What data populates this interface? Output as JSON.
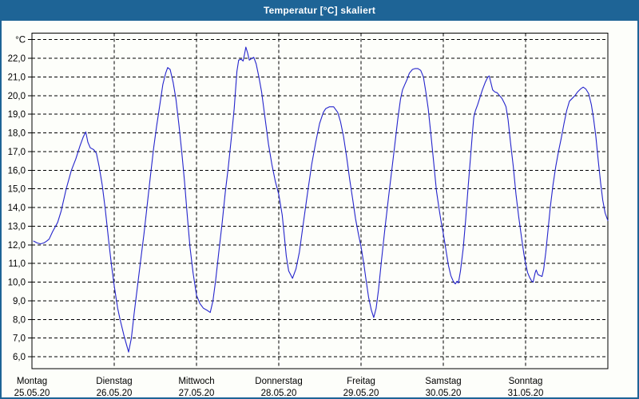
{
  "window": {
    "title": "Temperatur [°C] skaliert",
    "titlebar_color": "#1e6496",
    "border_color": "#1e6496",
    "background_color": "#fdfefa"
  },
  "chart_data": {
    "type": "line",
    "title": "Temperatur [°C] skaliert",
    "unit_label": "°C",
    "line_color": "#2424cc",
    "grid_color": "#000000",
    "grid_style": "dashed",
    "legend_position": "none",
    "y_axis": {
      "min": 6.0,
      "max": 23.0,
      "step": 1.0,
      "axis_min_visible": 5.4,
      "axis_max_visible": 23.3,
      "tick_labels": [
        {
          "v": 22,
          "label": "22,0"
        },
        {
          "v": 21,
          "label": "21,0"
        },
        {
          "v": 20,
          "label": "20,0"
        },
        {
          "v": 19,
          "label": "19,0"
        },
        {
          "v": 18,
          "label": "18,0"
        },
        {
          "v": 17,
          "label": "17,0"
        },
        {
          "v": 16,
          "label": "16,0"
        },
        {
          "v": 15,
          "label": "15,0"
        },
        {
          "v": 14,
          "label": "14,0"
        },
        {
          "v": 13,
          "label": "13,0"
        },
        {
          "v": 12,
          "label": "12,0"
        },
        {
          "v": 11,
          "label": "11,0"
        },
        {
          "v": 10,
          "label": "10,0"
        },
        {
          "v": 9,
          "label": "9,0"
        },
        {
          "v": 8,
          "label": "8,0"
        },
        {
          "v": 7,
          "label": "7,0"
        },
        {
          "v": 6,
          "label": "6,0"
        }
      ],
      "unit_tick_value": 23
    },
    "x_axis": {
      "range_hours": [
        0,
        168
      ],
      "day_span_hours": 24,
      "days": [
        {
          "name": "Montag",
          "date": "25.05.20"
        },
        {
          "name": "Dienstag",
          "date": "26.05.20"
        },
        {
          "name": "Mittwoch",
          "date": "27.05.20"
        },
        {
          "name": "Donnerstag",
          "date": "28.05.20"
        },
        {
          "name": "Freitag",
          "date": "29.05.20"
        },
        {
          "name": "Samstag",
          "date": "30.05.20"
        },
        {
          "name": "Sonntag",
          "date": "31.05.20"
        }
      ]
    },
    "series": [
      {
        "name": "Temperatur",
        "points": [
          [
            0.5,
            12.2
          ],
          [
            1.5,
            12.1
          ],
          [
            2.5,
            12.05
          ],
          [
            3.5,
            12.1
          ],
          [
            4.3,
            12.2
          ],
          [
            5,
            12.3
          ],
          [
            6,
            12.7
          ],
          [
            7.5,
            13.2
          ],
          [
            8.5,
            13.8
          ],
          [
            10,
            15.0
          ],
          [
            11.5,
            16.0
          ],
          [
            12.8,
            16.6
          ],
          [
            14,
            17.3
          ],
          [
            15,
            17.8
          ],
          [
            15.7,
            18.05
          ],
          [
            16.3,
            17.5
          ],
          [
            17,
            17.2
          ],
          [
            18,
            17.1
          ],
          [
            18.8,
            16.9
          ],
          [
            19.6,
            16.2
          ],
          [
            20.5,
            15.2
          ],
          [
            21.4,
            13.9
          ],
          [
            22.4,
            12.2
          ],
          [
            23.2,
            10.9
          ],
          [
            24,
            9.8
          ],
          [
            25,
            8.6
          ],
          [
            25.7,
            8.0
          ],
          [
            26.9,
            7.1
          ],
          [
            28.2,
            6.25
          ],
          [
            29,
            7.0
          ],
          [
            29.8,
            8.3
          ],
          [
            30.8,
            9.8
          ],
          [
            31.8,
            11.3
          ],
          [
            32.7,
            12.6
          ],
          [
            33.6,
            14.1
          ],
          [
            34.5,
            15.6
          ],
          [
            35.5,
            17.2
          ],
          [
            36.4,
            18.4
          ],
          [
            37.3,
            19.5
          ],
          [
            38.2,
            20.6
          ],
          [
            39,
            21.2
          ],
          [
            39.6,
            21.5
          ],
          [
            40.3,
            21.4
          ],
          [
            41.2,
            20.7
          ],
          [
            42,
            19.8
          ],
          [
            42.9,
            18.4
          ],
          [
            43.7,
            17.0
          ],
          [
            44.5,
            15.4
          ],
          [
            45.3,
            13.6
          ],
          [
            46.1,
            11.9
          ],
          [
            47,
            10.5
          ],
          [
            48,
            9.3
          ],
          [
            49,
            8.85
          ],
          [
            50,
            8.6
          ],
          [
            51,
            8.5
          ],
          [
            52,
            8.37
          ],
          [
            52.8,
            9.0
          ],
          [
            53.6,
            10.1
          ],
          [
            54.5,
            11.6
          ],
          [
            55.5,
            13.2
          ],
          [
            56.4,
            14.8
          ],
          [
            57.3,
            16.2
          ],
          [
            58.2,
            17.8
          ],
          [
            59,
            19.3
          ],
          [
            59.8,
            21.3
          ],
          [
            60.3,
            21.9
          ],
          [
            61,
            21.95
          ],
          [
            61.6,
            21.85
          ],
          [
            62.1,
            22.3
          ],
          [
            62.4,
            22.6
          ],
          [
            62.9,
            22.3
          ],
          [
            63.4,
            21.9
          ],
          [
            64.2,
            22.0
          ],
          [
            64.7,
            22.05
          ],
          [
            65.4,
            21.7
          ],
          [
            66.2,
            21.0
          ],
          [
            67,
            20.2
          ],
          [
            68,
            18.8
          ],
          [
            69,
            17.4
          ],
          [
            70,
            16.3
          ],
          [
            71,
            15.4
          ],
          [
            72,
            14.7
          ],
          [
            73,
            13.6
          ],
          [
            73.6,
            12.5
          ],
          [
            74.2,
            11.4
          ],
          [
            74.9,
            10.6
          ],
          [
            76,
            10.2
          ],
          [
            77,
            10.7
          ],
          [
            78,
            11.6
          ],
          [
            79.2,
            13.2
          ],
          [
            80.4,
            14.8
          ],
          [
            81.6,
            16.3
          ],
          [
            82.8,
            17.5
          ],
          [
            83.9,
            18.5
          ],
          [
            85,
            19.1
          ],
          [
            85.7,
            19.3
          ],
          [
            86.8,
            19.4
          ],
          [
            88,
            19.4
          ],
          [
            89.2,
            19.1
          ],
          [
            90,
            18.6
          ],
          [
            90.9,
            17.8
          ],
          [
            91.8,
            16.7
          ],
          [
            92.7,
            15.5
          ],
          [
            93.6,
            14.4
          ],
          [
            94.4,
            13.4
          ],
          [
            95.2,
            12.6
          ],
          [
            96,
            11.9
          ],
          [
            96.8,
            11.0
          ],
          [
            97.4,
            10.2
          ],
          [
            98.2,
            9.2
          ],
          [
            99,
            8.5
          ],
          [
            99.7,
            8.1
          ],
          [
            100.4,
            8.6
          ],
          [
            101.1,
            9.6
          ],
          [
            102,
            11.2
          ],
          [
            103,
            12.9
          ],
          [
            104,
            14.5
          ],
          [
            104.9,
            15.9
          ],
          [
            105.8,
            17.3
          ],
          [
            106.7,
            18.7
          ],
          [
            107.5,
            19.8
          ],
          [
            108.1,
            20.3
          ],
          [
            108.8,
            20.6
          ],
          [
            109.4,
            20.85
          ],
          [
            110.1,
            21.2
          ],
          [
            111,
            21.4
          ],
          [
            111.8,
            21.45
          ],
          [
            112.6,
            21.45
          ],
          [
            113.4,
            21.35
          ],
          [
            114.2,
            21.0
          ],
          [
            114.9,
            20.2
          ],
          [
            115.6,
            19.3
          ],
          [
            116.4,
            17.9
          ],
          [
            117.2,
            16.4
          ],
          [
            118,
            14.9
          ],
          [
            118.8,
            13.9
          ],
          [
            119.4,
            13.2
          ],
          [
            120,
            12.6
          ],
          [
            120.8,
            11.7
          ],
          [
            121.5,
            10.9
          ],
          [
            122.2,
            10.35
          ],
          [
            123,
            10.0
          ],
          [
            123.5,
            9.9
          ],
          [
            124,
            10.05
          ],
          [
            124.4,
            9.95
          ],
          [
            125,
            10.6
          ],
          [
            125.8,
            11.8
          ],
          [
            126.5,
            13.3
          ],
          [
            127.2,
            15.0
          ],
          [
            127.9,
            16.6
          ],
          [
            128.5,
            18.0
          ],
          [
            128.9,
            18.85
          ],
          [
            129.4,
            19.2
          ],
          [
            130,
            19.5
          ],
          [
            130.7,
            19.9
          ],
          [
            131.4,
            20.3
          ],
          [
            132.2,
            20.7
          ],
          [
            133,
            21.0
          ],
          [
            133.4,
            21.05
          ],
          [
            134,
            20.6
          ],
          [
            134.4,
            20.3
          ],
          [
            135,
            20.2
          ],
          [
            135.7,
            20.15
          ],
          [
            136.4,
            20.0
          ],
          [
            137.1,
            19.85
          ],
          [
            137.8,
            19.6
          ],
          [
            138.3,
            19.4
          ],
          [
            138.9,
            18.7
          ],
          [
            139.6,
            17.5
          ],
          [
            140.4,
            16.2
          ],
          [
            141.2,
            14.7
          ],
          [
            142,
            13.5
          ],
          [
            142.8,
            12.4
          ],
          [
            143.5,
            11.5
          ],
          [
            144,
            11.0
          ],
          [
            144.6,
            10.5
          ],
          [
            145.2,
            10.25
          ],
          [
            145.8,
            10.05
          ],
          [
            146.2,
            10.0
          ],
          [
            146.8,
            10.5
          ],
          [
            147.1,
            10.65
          ],
          [
            147.6,
            10.4
          ],
          [
            148.2,
            10.35
          ],
          [
            148.8,
            10.3
          ],
          [
            149.3,
            10.7
          ],
          [
            149.9,
            11.6
          ],
          [
            150.5,
            12.7
          ],
          [
            151.2,
            14.0
          ],
          [
            152,
            15.2
          ],
          [
            152.8,
            16.2
          ],
          [
            153.6,
            17.0
          ],
          [
            154.4,
            17.7
          ],
          [
            155.2,
            18.5
          ],
          [
            156,
            19.2
          ],
          [
            156.8,
            19.7
          ],
          [
            157.6,
            19.85
          ],
          [
            158.4,
            20.0
          ],
          [
            159.2,
            20.2
          ],
          [
            160,
            20.35
          ],
          [
            160.8,
            20.45
          ],
          [
            161.6,
            20.35
          ],
          [
            162.4,
            20.1
          ],
          [
            163.2,
            19.5
          ],
          [
            163.8,
            18.8
          ],
          [
            164.5,
            17.8
          ],
          [
            165.2,
            16.5
          ],
          [
            165.9,
            15.3
          ],
          [
            166.5,
            14.4
          ],
          [
            167.2,
            13.7
          ],
          [
            168,
            13.3
          ]
        ]
      }
    ]
  }
}
